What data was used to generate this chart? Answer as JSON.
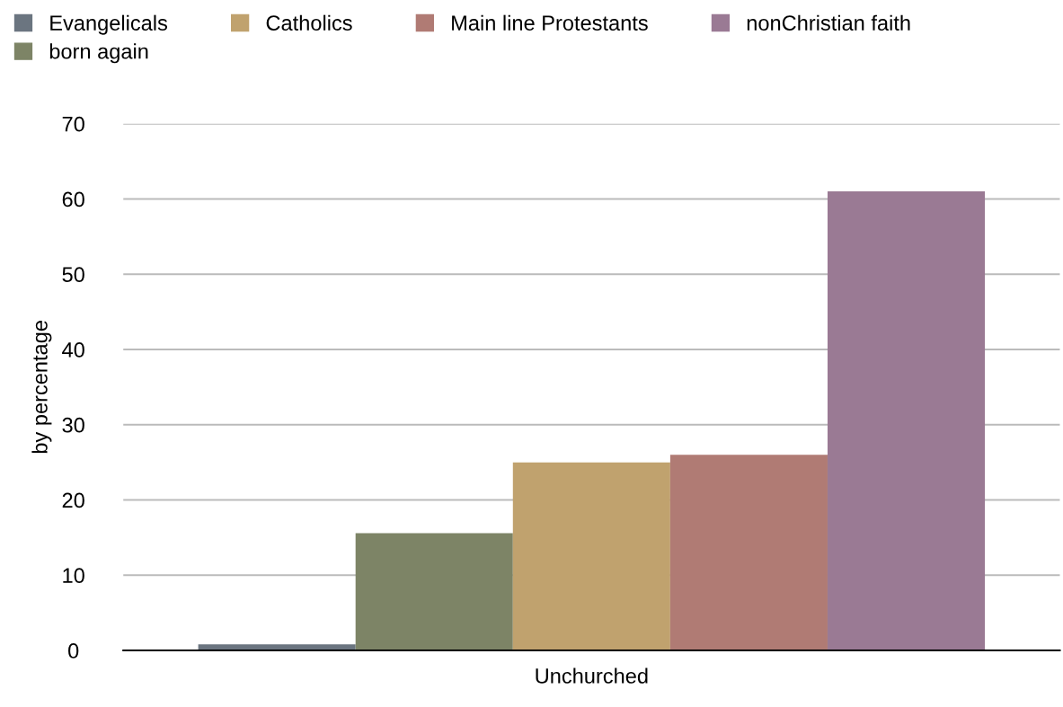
{
  "chart_data": {
    "type": "bar",
    "categories": [
      "Unchurched"
    ],
    "ylabel": "by percentage",
    "series": [
      {
        "name": "Evangelicals",
        "color": "#6b7580",
        "values": [
          0.8
        ]
      },
      {
        "name": "born again",
        "color": "#7d8466",
        "values": [
          15.6
        ]
      },
      {
        "name": "Catholics",
        "color": "#c0a26e",
        "values": [
          25
        ]
      },
      {
        "name": "Main line Protestants",
        "color": "#b07b74",
        "values": [
          26
        ]
      },
      {
        "name": "nonChristian faith",
        "color": "#9a7a94",
        "values": [
          61
        ]
      }
    ],
    "ylim": [
      0,
      70
    ],
    "yticks": [
      0,
      10,
      20,
      30,
      40,
      50,
      60,
      70
    ],
    "grid": "y",
    "legend": "top left"
  }
}
